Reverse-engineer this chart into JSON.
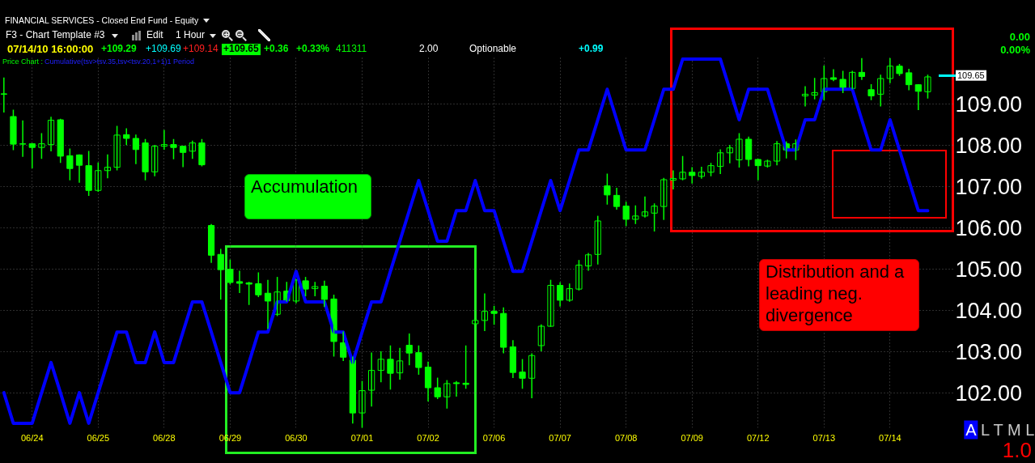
{
  "chart_data": {
    "type": "candlestick",
    "title": "FINANCIAL SERVICES - Closed End Fund - Equity",
    "categories": [
      null,
      null,
      null,
      "06/24",
      null,
      null,
      null,
      null,
      null,
      null,
      "06/25",
      null,
      null,
      null,
      null,
      null,
      null,
      "06/28",
      null,
      null,
      null,
      null,
      null,
      null,
      "06/29",
      null,
      null,
      null,
      null,
      null,
      null,
      "06/30",
      null,
      null,
      null,
      null,
      null,
      null,
      "07/01",
      null,
      null,
      null,
      null,
      null,
      null,
      "07/02",
      null,
      null,
      null,
      null,
      null,
      null,
      "07/06",
      null,
      null,
      null,
      null,
      null,
      null,
      "07/07",
      null,
      null,
      null,
      null,
      null,
      null,
      "07/08",
      null,
      null,
      null,
      null,
      null,
      null,
      "07/09",
      null,
      null,
      null,
      null,
      null,
      null,
      "07/12",
      null,
      null,
      null,
      null,
      null,
      null,
      "07/13",
      null,
      null,
      null,
      null,
      null,
      null,
      "07/14",
      null,
      null,
      null,
      null
    ],
    "series": [
      {
        "color": "#00ff00",
        "ohlc": [
          [
            109.24,
            109.62,
            108.8,
            109.23
          ],
          [
            108.69,
            108.84,
            107.89,
            108.02
          ],
          [
            108.02,
            108.58,
            107.73,
            108.03
          ],
          [
            108.03,
            108.03,
            107.45,
            107.94
          ],
          [
            107.94,
            108.27,
            107.68,
            108.03
          ],
          [
            108.01,
            108.67,
            107.86,
            108.6
          ],
          [
            108.61,
            108.62,
            107.58,
            107.73
          ],
          [
            107.74,
            107.9,
            107.16,
            107.43
          ],
          [
            107.76,
            107.76,
            107.1,
            107.51
          ],
          [
            107.5,
            107.84,
            106.78,
            106.9
          ],
          [
            106.9,
            107.56,
            106.88,
            107.38
          ],
          [
            107.38,
            107.76,
            107.21,
            107.46
          ],
          [
            107.46,
            108.45,
            107.4,
            108.24
          ],
          [
            108.25,
            108.39,
            108.01,
            108.16
          ],
          [
            108.16,
            108.24,
            107.55,
            107.89
          ],
          [
            108.05,
            108.13,
            107.16,
            107.35
          ],
          [
            107.35,
            107.99,
            107.26,
            107.97
          ],
          [
            107.97,
            108.35,
            107.9,
            108.01
          ],
          [
            108.01,
            108.13,
            107.67,
            107.94
          ],
          [
            107.97,
            107.97,
            107.48,
            107.82
          ],
          [
            107.85,
            108.09,
            107.68,
            108.05
          ],
          [
            108.05,
            108.13,
            107.5,
            107.52
          ],
          [
            106.05,
            106.07,
            105.16,
            105.33
          ],
          [
            105.35,
            105.47,
            104.27,
            104.98
          ],
          [
            104.99,
            105.21,
            104.64,
            104.67
          ],
          [
            104.69,
            104.94,
            104.43,
            104.65
          ],
          [
            104.66,
            104.67,
            104.14,
            104.63
          ],
          [
            104.64,
            104.9,
            104.33,
            104.37
          ],
          [
            104.41,
            104.72,
            103.56,
            104.22
          ],
          [
            103.9,
            104.79,
            103.87,
            104.44
          ],
          [
            104.46,
            104.67,
            104.22,
            104.23
          ],
          [
            104.22,
            104.74,
            104.18,
            104.73
          ],
          [
            104.71,
            104.79,
            104.35,
            104.51
          ],
          [
            104.52,
            104.67,
            104.35,
            104.57
          ],
          [
            104.58,
            104.7,
            104.09,
            104.26
          ],
          [
            104.27,
            104.36,
            102.89,
            103.24
          ],
          [
            103.21,
            103.47,
            102.78,
            102.86
          ],
          [
            102.79,
            102.86,
            101.27,
            101.51
          ],
          [
            101.51,
            102.27,
            101.14,
            102.05
          ],
          [
            102.06,
            102.96,
            101.68,
            102.54
          ],
          [
            102.54,
            102.99,
            102.27,
            102.81
          ],
          [
            102.81,
            103.13,
            102.09,
            102.47
          ],
          [
            102.48,
            103.07,
            102.33,
            102.77
          ],
          [
            103.15,
            103.42,
            102.68,
            102.96
          ],
          [
            102.97,
            103.13,
            102.45,
            102.61
          ],
          [
            102.62,
            102.74,
            101.8,
            102.12
          ],
          [
            102.12,
            102.35,
            101.86,
            101.9
          ],
          [
            101.9,
            102.29,
            101.63,
            102.22
          ],
          [
            102.24,
            102.27,
            101.92,
            102.22
          ],
          [
            102.23,
            103.13,
            102.11,
            102.2
          ],
          [
            103.67,
            103.76,
            103.66,
            103.75
          ],
          [
            103.75,
            104.39,
            103.51,
            103.97
          ],
          [
            103.97,
            104.09,
            103.66,
            103.92
          ],
          [
            103.92,
            104.05,
            102.97,
            103.1
          ],
          [
            103.11,
            103.26,
            102.37,
            102.49
          ],
          [
            102.5,
            102.8,
            102.11,
            102.35
          ],
          [
            102.35,
            102.94,
            101.88,
            102.9
          ],
          [
            103.14,
            103.64,
            103.02,
            103.61
          ],
          [
            103.61,
            104.72,
            103.61,
            104.6
          ],
          [
            104.6,
            104.66,
            104.1,
            104.24
          ],
          [
            104.24,
            104.63,
            104.22,
            104.52
          ],
          [
            104.51,
            105.2,
            104.49,
            105.09
          ],
          [
            105.07,
            105.37,
            104.97,
            105.34
          ],
          [
            105.35,
            106.27,
            105.12,
            106.16
          ],
          [
            107.01,
            107.29,
            106.57,
            106.79
          ],
          [
            106.78,
            106.95,
            106.45,
            106.51
          ],
          [
            106.52,
            106.61,
            106.05,
            106.2
          ],
          [
            106.2,
            106.52,
            106.1,
            106.28
          ],
          [
            106.28,
            106.74,
            106.26,
            106.38
          ],
          [
            106.35,
            106.57,
            105.92,
            106.52
          ],
          [
            106.51,
            107.19,
            106.2,
            107.16
          ],
          [
            107.15,
            107.37,
            106.94,
            107.19
          ],
          [
            107.18,
            107.72,
            107.16,
            107.34
          ],
          [
            107.34,
            107.45,
            107.08,
            107.26
          ],
          [
            107.24,
            107.46,
            107.2,
            107.34
          ],
          [
            107.34,
            107.55,
            107.26,
            107.5
          ],
          [
            107.48,
            107.88,
            107.31,
            107.81
          ],
          [
            107.81,
            107.99,
            107.57,
            107.93
          ],
          [
            107.64,
            108.27,
            107.47,
            108.14
          ],
          [
            108.14,
            108.19,
            107.5,
            107.65
          ],
          [
            107.65,
            107.65,
            107.16,
            107.5
          ],
          [
            107.49,
            107.63,
            107.47,
            107.61
          ],
          [
            107.61,
            108.08,
            107.52,
            108.03
          ],
          [
            108.03,
            108.07,
            107.69,
            107.88
          ],
          [
            107.88,
            108.12,
            107.65,
            108.03
          ],
          [
            109.19,
            109.41,
            108.95,
            109.23
          ],
          [
            109.21,
            109.61,
            109.12,
            109.27
          ],
          [
            109.29,
            109.91,
            109.1,
            109.61
          ],
          [
            109.63,
            109.82,
            109.56,
            109.59
          ],
          [
            109.59,
            109.78,
            109.27,
            109.39
          ],
          [
            109.37,
            109.78,
            109.36,
            109.76
          ],
          [
            109.76,
            110.09,
            109.59,
            109.66
          ],
          [
            109.34,
            109.46,
            109.1,
            109.19
          ],
          [
            109.23,
            109.69,
            108.95,
            109.61
          ],
          [
            109.61,
            110.09,
            109.51,
            109.91
          ],
          [
            109.91,
            109.95,
            109.69,
            109.73
          ],
          [
            109.75,
            109.83,
            109.34,
            109.46
          ],
          [
            109.46,
            109.46,
            108.86,
            109.3
          ],
          [
            109.29,
            109.69,
            109.14,
            109.65
          ]
        ]
      },
      {
        "type": "line",
        "color": "#0000ff",
        "values": [
          102.0,
          101.26,
          101.26,
          101.26,
          102.0,
          102.73,
          102.0,
          101.26,
          102.0,
          101.26,
          102.0,
          102.73,
          103.47,
          103.47,
          102.73,
          102.73,
          103.47,
          102.73,
          102.73,
          103.47,
          104.2,
          104.2,
          103.47,
          102.73,
          102.0,
          102.0,
          102.73,
          103.47,
          103.47,
          104.2,
          104.2,
          104.94,
          104.2,
          104.2,
          104.2,
          103.47,
          103.47,
          102.73,
          103.47,
          104.2,
          104.2,
          104.94,
          105.67,
          106.41,
          107.14,
          106.41,
          105.67,
          105.67,
          106.41,
          106.41,
          107.14,
          106.41,
          106.41,
          105.67,
          104.94,
          104.94,
          105.67,
          106.41,
          107.14,
          106.41,
          107.14,
          107.88,
          107.88,
          108.61,
          109.35,
          108.61,
          107.88,
          107.88,
          107.88,
          108.61,
          109.35,
          109.35,
          110.08,
          110.08,
          110.08,
          110.08,
          110.08,
          109.35,
          108.61,
          109.35,
          109.35,
          109.35,
          108.61,
          107.88,
          107.88,
          108.61,
          108.61,
          109.35,
          109.35,
          109.35,
          109.35,
          108.61,
          107.88,
          107.88,
          108.61,
          107.88,
          107.14,
          106.41,
          106.41
        ]
      }
    ],
    "ylim": [
      101.15,
      110.13
    ],
    "yticks": [
      {
        "value": 102,
        "label": "102.00"
      },
      {
        "value": 103,
        "label": "103.00"
      },
      {
        "value": 104,
        "label": "104.00"
      },
      {
        "value": 105,
        "label": "105.00"
      },
      {
        "value": 106,
        "label": "106.00"
      },
      {
        "value": 107,
        "label": "107.00"
      },
      {
        "value": 108,
        "label": "108.00"
      },
      {
        "value": 109,
        "label": "109.00"
      }
    ],
    "grid": true,
    "annotations": [
      "F3 - Chart Template #3",
      "Edit",
      "1 Hour",
      "07/14/10 16:00:00",
      "+109.29",
      "+109.69",
      "+109.14",
      "+109.65",
      "+0.36",
      "+0.33%",
      "411311",
      "2.00",
      "Optionable",
      "+0.99",
      "Price Chart :",
      "Cumulative(tsv>tsv.35,tsv<tsv.20,1+1)1 Period",
      "0.00",
      "0.00%",
      "109.65",
      "Accumulation",
      "Distribution and a leading neg. divergence",
      "A",
      "L T M L",
      "1.0"
    ]
  }
}
